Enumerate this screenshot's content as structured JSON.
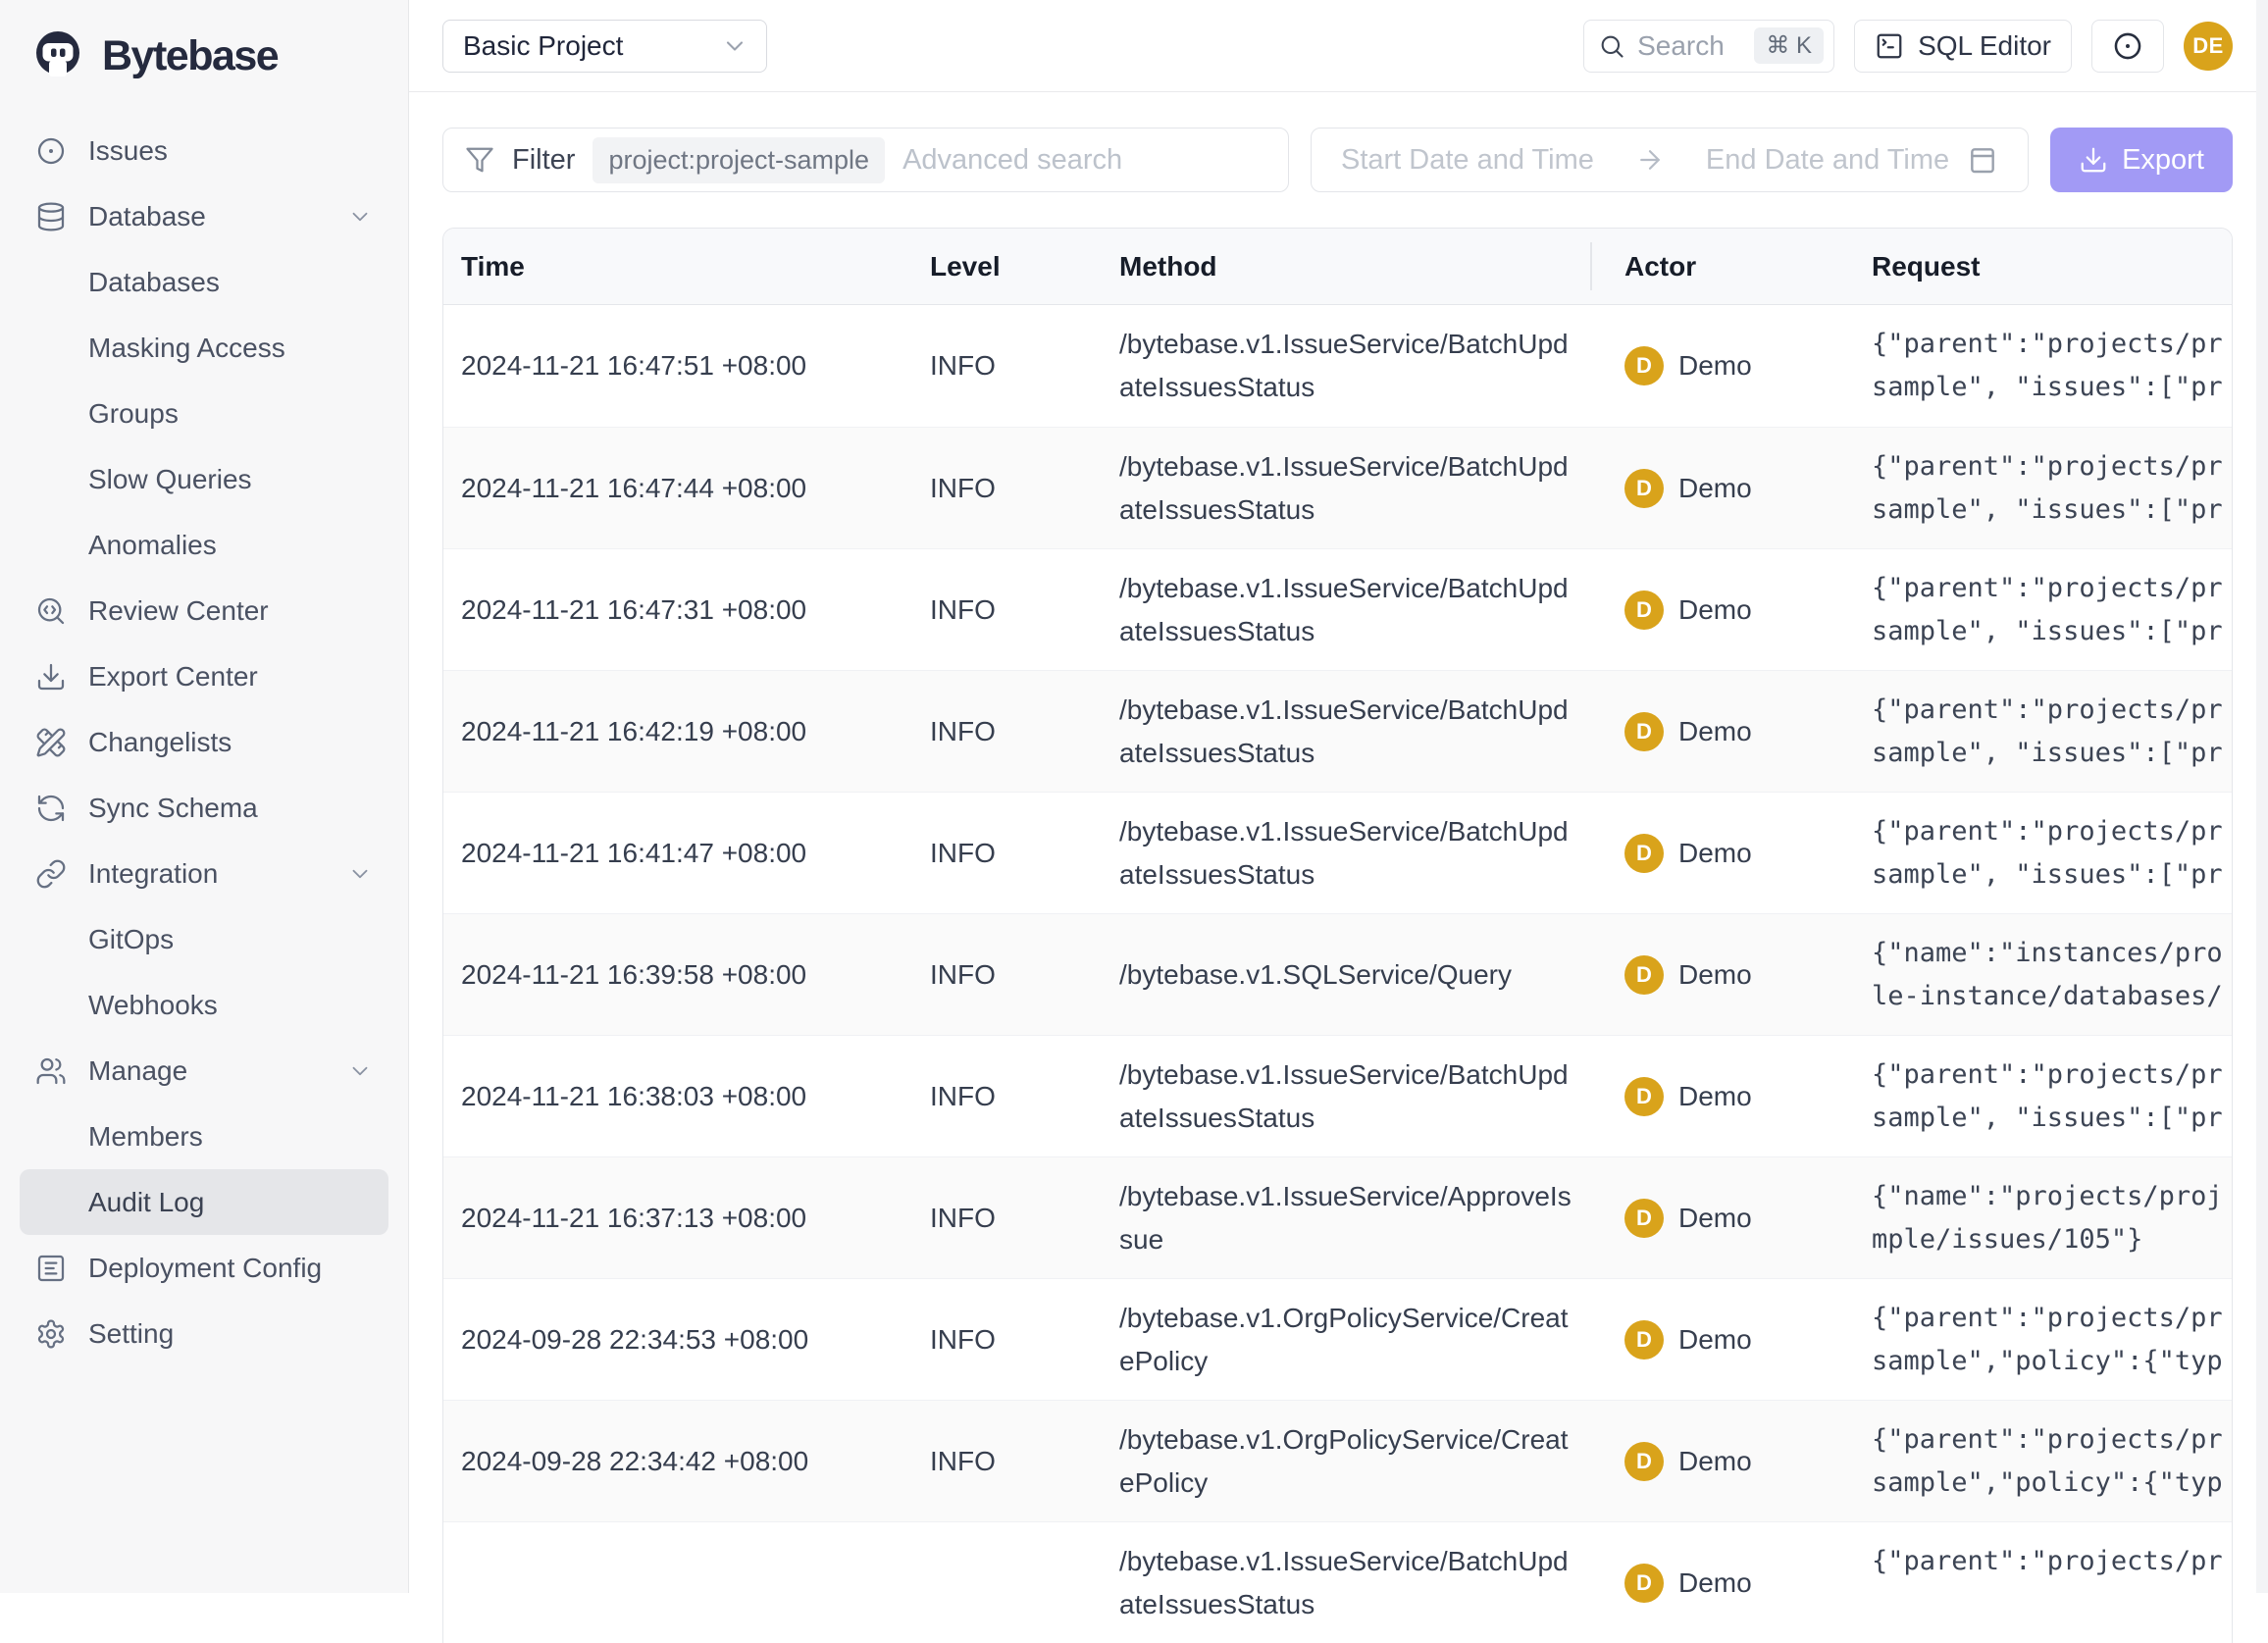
{
  "brand": {
    "name": "Bytebase"
  },
  "colors": {
    "accent_purple": "#a29af5",
    "avatar_gold": "#d9a31b",
    "brand_dark": "#252a3e",
    "sidebar_bg": "#f7f7f8",
    "active_item_bg": "#e5e6e9",
    "row_alt_bg": "#fafafa"
  },
  "sidebar": {
    "items": [
      {
        "label": "Issues",
        "icon": "disc-icon",
        "type": "top",
        "chevron": false,
        "active": false
      },
      {
        "label": "Database",
        "icon": "database-icon",
        "type": "top",
        "chevron": true,
        "active": false
      },
      {
        "label": "Databases",
        "type": "sub",
        "active": false
      },
      {
        "label": "Masking Access",
        "type": "sub",
        "active": false
      },
      {
        "label": "Groups",
        "type": "sub",
        "active": false
      },
      {
        "label": "Slow Queries",
        "type": "sub",
        "active": false
      },
      {
        "label": "Anomalies",
        "type": "sub",
        "active": false
      },
      {
        "label": "Review Center",
        "icon": "search-code-icon",
        "type": "top",
        "chevron": false,
        "active": false
      },
      {
        "label": "Export Center",
        "icon": "download-icon",
        "type": "top",
        "chevron": false,
        "active": false
      },
      {
        "label": "Changelists",
        "icon": "pencil-ruler-icon",
        "type": "top",
        "chevron": false,
        "active": false
      },
      {
        "label": "Sync Schema",
        "icon": "refresh-icon",
        "type": "top",
        "chevron": false,
        "active": false
      },
      {
        "label": "Integration",
        "icon": "link-icon",
        "type": "top",
        "chevron": true,
        "active": false
      },
      {
        "label": "GitOps",
        "type": "sub",
        "active": false
      },
      {
        "label": "Webhooks",
        "type": "sub",
        "active": false
      },
      {
        "label": "Manage",
        "icon": "users-icon",
        "type": "top",
        "chevron": true,
        "active": false
      },
      {
        "label": "Members",
        "type": "sub",
        "active": false
      },
      {
        "label": "Audit Log",
        "type": "sub",
        "active": true
      },
      {
        "label": "Deployment Config",
        "icon": "list-square-icon",
        "type": "top",
        "chevron": false,
        "active": false
      },
      {
        "label": "Setting",
        "icon": "gear-icon",
        "type": "top",
        "chevron": false,
        "active": false
      }
    ]
  },
  "header": {
    "project_select": "Basic Project",
    "search_placeholder": "Search",
    "search_shortcut": "⌘ K",
    "sql_editor_label": "SQL Editor",
    "avatar_initials": "DE"
  },
  "filters": {
    "filter_label": "Filter",
    "filter_chip": "project:project-sample",
    "advanced_placeholder": "Advanced search",
    "start_date_placeholder": "Start Date and Time",
    "end_date_placeholder": "End Date and Time",
    "export_label": "Export"
  },
  "table": {
    "columns": [
      "Time",
      "Level",
      "Method",
      "Actor",
      "Request"
    ],
    "rows": [
      {
        "time": "2024-11-21 16:47:51 +08:00",
        "level": "INFO",
        "method": "/bytebase.v1.IssueService/BatchUpdateIssuesStatus",
        "actor_initial": "D",
        "actor_name": "Demo",
        "request_line1": "{\"parent\":\"projects/pr",
        "request_line2": "sample\", \"issues\":[\"pr"
      },
      {
        "time": "2024-11-21 16:47:44 +08:00",
        "level": "INFO",
        "method": "/bytebase.v1.IssueService/BatchUpdateIssuesStatus",
        "actor_initial": "D",
        "actor_name": "Demo",
        "request_line1": "{\"parent\":\"projects/pr",
        "request_line2": "sample\", \"issues\":[\"pr"
      },
      {
        "time": "2024-11-21 16:47:31 +08:00",
        "level": "INFO",
        "method": "/bytebase.v1.IssueService/BatchUpdateIssuesStatus",
        "actor_initial": "D",
        "actor_name": "Demo",
        "request_line1": "{\"parent\":\"projects/pr",
        "request_line2": "sample\", \"issues\":[\"pr"
      },
      {
        "time": "2024-11-21 16:42:19 +08:00",
        "level": "INFO",
        "method": "/bytebase.v1.IssueService/BatchUpdateIssuesStatus",
        "actor_initial": "D",
        "actor_name": "Demo",
        "request_line1": "{\"parent\":\"projects/pr",
        "request_line2": "sample\", \"issues\":[\"pr"
      },
      {
        "time": "2024-11-21 16:41:47 +08:00",
        "level": "INFO",
        "method": "/bytebase.v1.IssueService/BatchUpdateIssuesStatus",
        "actor_initial": "D",
        "actor_name": "Demo",
        "request_line1": "{\"parent\":\"projects/pr",
        "request_line2": "sample\", \"issues\":[\"pr"
      },
      {
        "time": "2024-11-21 16:39:58 +08:00",
        "level": "INFO",
        "method": "/bytebase.v1.SQLService/Query",
        "actor_initial": "D",
        "actor_name": "Demo",
        "request_line1": "{\"name\":\"instances/pro",
        "request_line2": "le-instance/databases/"
      },
      {
        "time": "2024-11-21 16:38:03 +08:00",
        "level": "INFO",
        "method": "/bytebase.v1.IssueService/BatchUpdateIssuesStatus",
        "actor_initial": "D",
        "actor_name": "Demo",
        "request_line1": "{\"parent\":\"projects/pr",
        "request_line2": "sample\", \"issues\":[\"pr"
      },
      {
        "time": "2024-11-21 16:37:13 +08:00",
        "level": "INFO",
        "method": "/bytebase.v1.IssueService/ApproveIssue",
        "actor_initial": "D",
        "actor_name": "Demo",
        "request_line1": "{\"name\":\"projects/proj",
        "request_line2": "mple/issues/105\"}"
      },
      {
        "time": "2024-09-28 22:34:53 +08:00",
        "level": "INFO",
        "method": "/bytebase.v1.OrgPolicyService/CreatePolicy",
        "actor_initial": "D",
        "actor_name": "Demo",
        "request_line1": "{\"parent\":\"projects/pr",
        "request_line2": "sample\",\"policy\":{\"typ"
      },
      {
        "time": "2024-09-28 22:34:42 +08:00",
        "level": "INFO",
        "method": "/bytebase.v1.OrgPolicyService/CreatePolicy",
        "actor_initial": "D",
        "actor_name": "Demo",
        "request_line1": "{\"parent\":\"projects/pr",
        "request_line2": "sample\",\"policy\":{\"typ"
      },
      {
        "time": "",
        "level": "",
        "method": "/bytebase.v1.IssueService/BatchUpdateIssuesStatus",
        "actor_initial": "D",
        "actor_name": "Demo",
        "request_line1": "{\"parent\":\"projects/pr",
        "request_line2": ""
      }
    ]
  }
}
